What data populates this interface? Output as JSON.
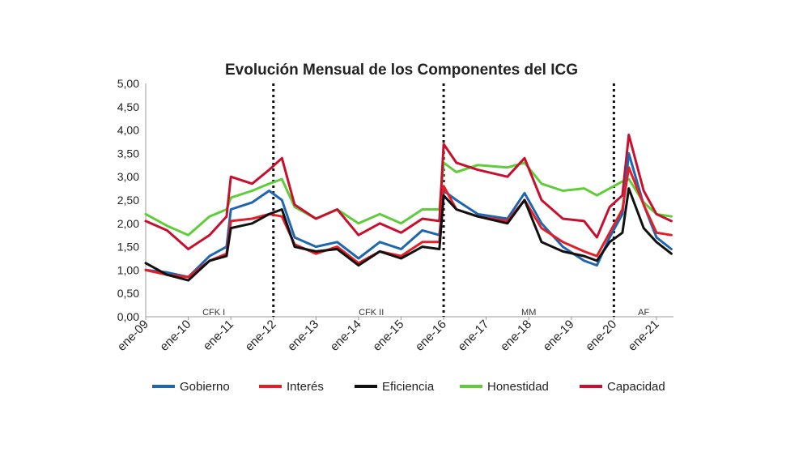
{
  "chart_data": {
    "type": "line",
    "title": "Evolución Mensual de los Componentes del ICG",
    "xlabel": "",
    "ylabel": "",
    "ylim": [
      0,
      5
    ],
    "yticks": [
      "0,00",
      "0,50",
      "1,00",
      "1,50",
      "2,00",
      "2,50",
      "3,00",
      "3,50",
      "4,00",
      "4,50",
      "5,00"
    ],
    "xticks": [
      "ene-09",
      "ene-10",
      "ene-11",
      "ene-12",
      "ene-13",
      "ene-14",
      "ene-15",
      "ene-16",
      "ene-17",
      "ene-18",
      "ene-19",
      "ene-20",
      "ene-21"
    ],
    "x_start_year": 2009,
    "x_range_years": [
      2009,
      2021.4
    ],
    "period_separators": [
      2012.0,
      2016.0,
      2020.0
    ],
    "periods": [
      {
        "label": "CFK I",
        "x": 2010.6
      },
      {
        "label": "CFK II",
        "x": 2014.3
      },
      {
        "label": "MM",
        "x": 2018.0
      },
      {
        "label": "AF",
        "x": 2020.7
      }
    ],
    "series": [
      {
        "name": "Gobierno",
        "color": "#1f66b0",
        "x": [
          2009,
          2009.5,
          2010,
          2010.5,
          2010.9,
          2011,
          2011.5,
          2011.9,
          2012.2,
          2012.5,
          2013,
          2013.5,
          2014,
          2014.5,
          2015,
          2015.5,
          2015.9,
          2016,
          2016.3,
          2016.8,
          2017.5,
          2017.9,
          2018.3,
          2018.8,
          2019.3,
          2019.6,
          2019.9,
          2020.2,
          2020.35,
          2020.7,
          2021,
          2021.35
        ],
        "values": [
          1.0,
          0.95,
          0.85,
          1.3,
          1.5,
          2.3,
          2.45,
          2.7,
          2.5,
          1.7,
          1.5,
          1.6,
          1.25,
          1.6,
          1.45,
          1.85,
          1.75,
          2.7,
          2.5,
          2.2,
          2.1,
          2.65,
          2.0,
          1.5,
          1.2,
          1.1,
          1.7,
          2.2,
          3.5,
          2.4,
          1.7,
          1.45
        ]
      },
      {
        "name": "Interés",
        "color": "#e41e26",
        "x": [
          2009,
          2009.5,
          2010,
          2010.5,
          2010.9,
          2011,
          2011.5,
          2011.9,
          2012.2,
          2012.5,
          2013,
          2013.5,
          2014,
          2014.5,
          2015,
          2015.5,
          2015.9,
          2016,
          2016.3,
          2016.8,
          2017.5,
          2017.9,
          2018.3,
          2018.8,
          2019.3,
          2019.6,
          2019.9,
          2020.2,
          2020.35,
          2020.7,
          2021,
          2021.35
        ],
        "values": [
          1.0,
          0.9,
          0.85,
          1.2,
          1.35,
          2.05,
          2.1,
          2.2,
          2.15,
          1.55,
          1.35,
          1.5,
          1.15,
          1.4,
          1.3,
          1.6,
          1.6,
          2.8,
          2.3,
          2.15,
          2.05,
          2.5,
          1.9,
          1.6,
          1.4,
          1.3,
          1.8,
          2.3,
          3.2,
          2.4,
          1.8,
          1.75
        ]
      },
      {
        "name": "Eficiencia",
        "color": "#111111",
        "x": [
          2009,
          2009.5,
          2010,
          2010.5,
          2010.9,
          2011,
          2011.5,
          2011.9,
          2012.2,
          2012.5,
          2013,
          2013.5,
          2014,
          2014.5,
          2015,
          2015.5,
          2015.9,
          2016,
          2016.3,
          2016.8,
          2017.5,
          2017.9,
          2018.3,
          2018.8,
          2019.3,
          2019.6,
          2019.9,
          2020.2,
          2020.35,
          2020.7,
          2021,
          2021.35
        ],
        "values": [
          1.15,
          0.9,
          0.78,
          1.2,
          1.3,
          1.9,
          2.0,
          2.2,
          2.3,
          1.5,
          1.4,
          1.45,
          1.1,
          1.4,
          1.25,
          1.5,
          1.45,
          2.6,
          2.3,
          2.15,
          2.0,
          2.5,
          1.6,
          1.4,
          1.3,
          1.2,
          1.6,
          1.8,
          2.75,
          1.9,
          1.6,
          1.35
        ]
      },
      {
        "name": "Honestidad",
        "color": "#5fcd3a",
        "x": [
          2009,
          2009.5,
          2010,
          2010.5,
          2010.9,
          2011,
          2011.5,
          2011.9,
          2012.2,
          2012.5,
          2013,
          2013.5,
          2014,
          2014.5,
          2015,
          2015.5,
          2015.9,
          2016,
          2016.3,
          2016.8,
          2017.5,
          2017.9,
          2018.3,
          2018.8,
          2019.3,
          2019.6,
          2019.9,
          2020.2,
          2020.35,
          2020.7,
          2021,
          2021.35
        ],
        "values": [
          2.2,
          1.95,
          1.75,
          2.15,
          2.3,
          2.55,
          2.7,
          2.85,
          2.95,
          2.35,
          2.1,
          2.3,
          2.0,
          2.2,
          2.0,
          2.3,
          2.3,
          3.3,
          3.1,
          3.25,
          3.2,
          3.3,
          2.85,
          2.7,
          2.75,
          2.6,
          2.75,
          2.9,
          2.95,
          2.45,
          2.2,
          2.15
        ]
      },
      {
        "name": "Capacidad",
        "color": "#c8102e",
        "x": [
          2009,
          2009.5,
          2010,
          2010.5,
          2010.9,
          2011,
          2011.5,
          2011.9,
          2012.2,
          2012.5,
          2013,
          2013.5,
          2014,
          2014.5,
          2015,
          2015.5,
          2015.9,
          2016,
          2016.3,
          2016.8,
          2017.5,
          2017.9,
          2018.3,
          2018.8,
          2019.3,
          2019.6,
          2019.9,
          2020.2,
          2020.35,
          2020.7,
          2021,
          2021.35
        ],
        "values": [
          2.05,
          1.85,
          1.45,
          1.75,
          2.15,
          3.0,
          2.85,
          3.15,
          3.4,
          2.4,
          2.1,
          2.3,
          1.75,
          2.0,
          1.8,
          2.1,
          2.05,
          3.7,
          3.3,
          3.15,
          3.0,
          3.4,
          2.5,
          2.1,
          2.05,
          1.7,
          2.35,
          2.6,
          3.9,
          2.7,
          2.2,
          2.05
        ]
      }
    ]
  }
}
